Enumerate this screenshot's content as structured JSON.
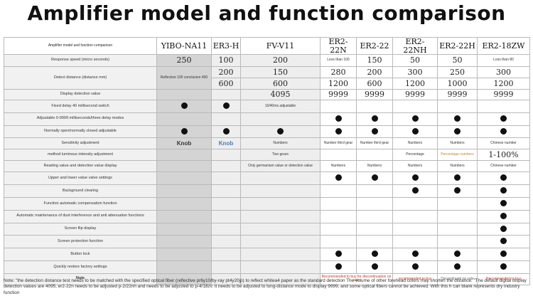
{
  "title": "Amplifier model and function comparison",
  "header": {
    "label": "Amplifier model and function comparison",
    "models": [
      "YIBO-NA11",
      "ER3-H",
      "FV-V11",
      "ER2-22N",
      "ER2-22",
      "ER2-22NH",
      "ER2-22H",
      "ER2-18ZW"
    ]
  },
  "rows": {
    "speed_label": "Response speed (micro seconds)",
    "speed": [
      "250",
      "100",
      "200",
      "Less than 100",
      "150",
      "50",
      "50",
      "Less than 80"
    ],
    "detect_label": "Detect distance (distance mm)",
    "detect_r1": [
      "",
      "200",
      "150",
      "280",
      "200",
      "300",
      "250",
      "300"
    ],
    "detect_note": "Reflective 100 conclusion 400",
    "detect_r2": [
      "",
      "600",
      "600",
      "1200",
      "600",
      "1200",
      "1000",
      "1200"
    ],
    "display_label": "Display detection value",
    "display": [
      "",
      "",
      "4095",
      "9999",
      "9999",
      "9999",
      "9999",
      "9999"
    ],
    "fixed_delay_label": "Fixed delay 40 millisecond switch",
    "fixed_delay_fv": "10/40ms adjustable",
    "adj_delay_label": "Adjustable 0-9999 milliseconds/three delay modes",
    "no_nc_label": "Normally open/normally closed adjustable",
    "sens_label": "Sensitivity adjustment",
    "sens_method_label": "method luminous intensity adjustment",
    "knob": "Knob",
    "numbers": "Numbers",
    "numbers_third_gear": "Number third gear",
    "chinese_number": "Chinese number",
    "two_gears": "Two gears",
    "percentage": "Percentage",
    "percentage_numbers": "Percentage numbers",
    "range_1_100": "1-100%",
    "reading_label": "Reading value and detection value display",
    "germanium": "Only germanium value or detection value",
    "upper_lower_label": "Upper and lower value valve settings",
    "bg_label": "Background clearing",
    "auto_comp_label": "Function automatic compensation function",
    "maint_label": "Automatic maintenance of dust interference and anti attenuation functions",
    "flip_label": "Screen flip display",
    "protect_label": "Screen protection function",
    "button_lock_label": "Button lock",
    "restore_label": "Quickly restore factory settings",
    "note_label": "Note",
    "notes": [
      "",
      "",
      "",
      "Recommended to buy for discontinuation on sale",
      "recommended to buy",
      "",
      "Discontinued on sale",
      "Recommended to buy"
    ]
  },
  "footnote": "Note: \"the detection distance test needs to be matched with the specified optical fiber (reflective pr6y10/by-ray pt4y20jp) to reflect whitea4 paper as the standard detection The volume of other forehead colors may shorten the distance. \"The default digital display detection values are 4095, er2-22n needs to be adjusted p-2/22nh and needs to be adjusted to p-4/18zv. it needs to be adjusted to long-distance mode to display 9999, and some optical fibers cannot be achieved. With this h can blank represents dry industry function"
}
